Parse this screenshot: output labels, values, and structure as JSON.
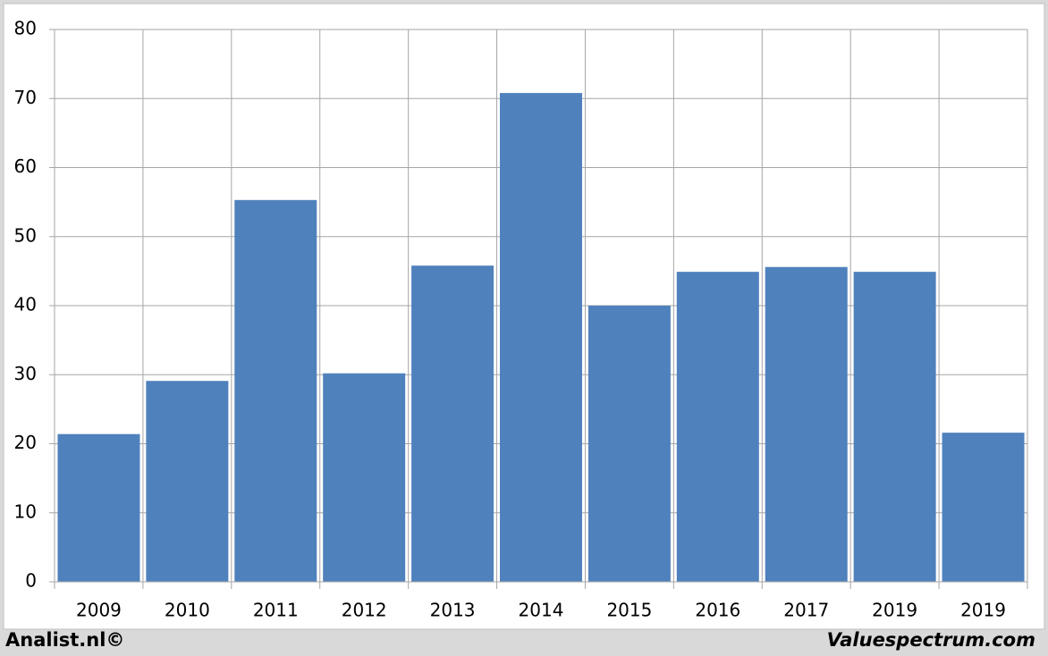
{
  "chart_data": {
    "type": "bar",
    "categories": [
      "2009",
      "2010",
      "2011",
      "2012",
      "2013",
      "2014",
      "2015",
      "2016",
      "2017",
      "2019",
      "2019"
    ],
    "values": [
      21.4,
      29.1,
      55.3,
      30.2,
      45.8,
      70.8,
      40.0,
      44.9,
      45.6,
      44.9,
      21.6
    ],
    "color": "#4f81bd",
    "ylim": [
      0,
      80
    ],
    "yticks": [
      0,
      10,
      20,
      30,
      40,
      50,
      60,
      70,
      80
    ],
    "grid": true,
    "annotations": [
      "Analist.nl©",
      "Valuespectrum.com"
    ]
  }
}
